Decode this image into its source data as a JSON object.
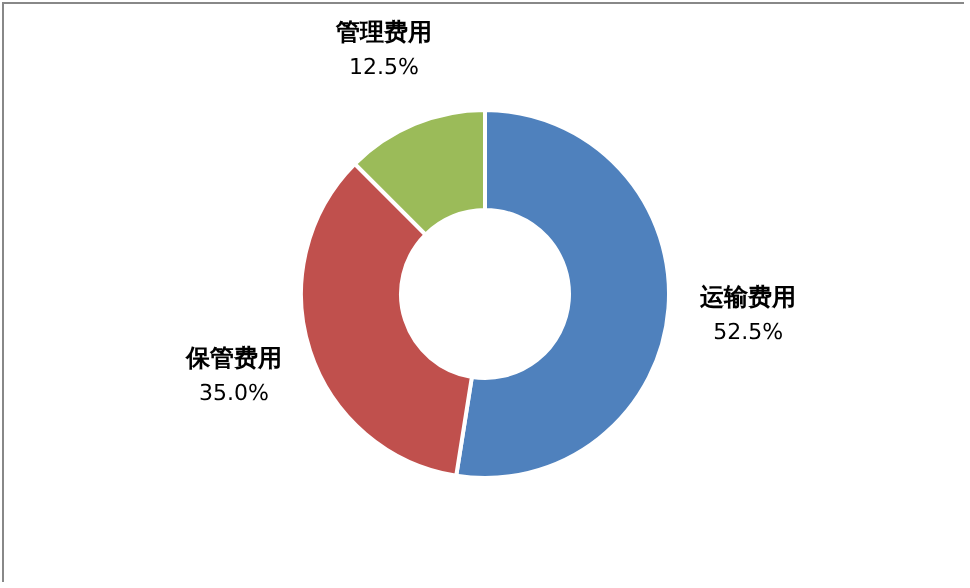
{
  "chart_data": {
    "type": "donut",
    "categories": [
      "运输费用",
      "保管费用",
      "管理费用"
    ],
    "values": [
      52.5,
      35.0,
      12.5
    ],
    "colors": [
      "#4f81bd",
      "#c0504d",
      "#9bbb59"
    ],
    "value_labels": [
      "52.5%",
      "35.0%",
      "12.5%"
    ],
    "legend": false
  }
}
